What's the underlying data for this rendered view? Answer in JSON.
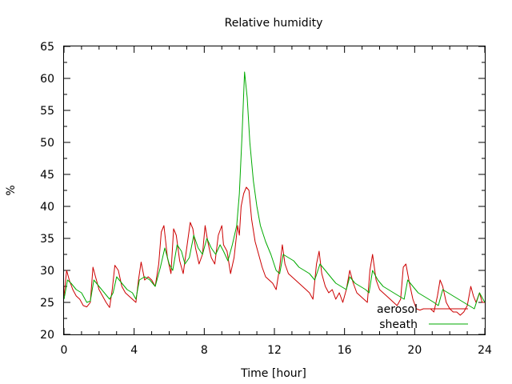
{
  "chart_data": {
    "type": "line",
    "title": "Relative humidity",
    "xlabel": "Time [hour]",
    "ylabel": "%",
    "xlim": [
      0,
      24
    ],
    "ylim": [
      20,
      65
    ],
    "xticks": [
      0,
      4,
      8,
      12,
      16,
      20,
      24
    ],
    "yticks": [
      20,
      25,
      30,
      35,
      40,
      45,
      50,
      55,
      60,
      65
    ],
    "grid": false,
    "legend_position": "bottom-right",
    "series": [
      {
        "name": "aerosol",
        "color": "#cc0000",
        "x": [
          0.0,
          0.15,
          0.3,
          0.5,
          0.7,
          0.9,
          1.1,
          1.3,
          1.5,
          1.65,
          1.8,
          2.0,
          2.2,
          2.4,
          2.6,
          2.75,
          2.9,
          3.1,
          3.3,
          3.5,
          3.7,
          3.9,
          4.1,
          4.25,
          4.4,
          4.6,
          4.8,
          5.0,
          5.2,
          5.4,
          5.55,
          5.7,
          5.9,
          6.1,
          6.25,
          6.4,
          6.6,
          6.8,
          7.0,
          7.2,
          7.35,
          7.5,
          7.7,
          7.9,
          8.05,
          8.2,
          8.4,
          8.6,
          8.8,
          9.0,
          9.1,
          9.3,
          9.5,
          9.7,
          9.9,
          10.0,
          10.1,
          10.25,
          10.4,
          10.55,
          10.7,
          10.9,
          11.1,
          11.3,
          11.5,
          11.7,
          11.9,
          12.1,
          12.3,
          12.45,
          12.6,
          12.8,
          13.0,
          13.2,
          13.4,
          13.6,
          13.8,
          14.0,
          14.2,
          14.4,
          14.55,
          14.7,
          14.9,
          15.1,
          15.3,
          15.5,
          15.7,
          15.9,
          16.1,
          16.3,
          16.5,
          16.7,
          16.9,
          17.1,
          17.3,
          17.45,
          17.6,
          17.8,
          18.0,
          18.2,
          18.4,
          18.6,
          18.8,
          19.0,
          19.2,
          19.35,
          19.5,
          19.7,
          19.9,
          20.1,
          20.3,
          20.5,
          20.7,
          20.9,
          21.1,
          21.3,
          21.45,
          21.6,
          21.8,
          22.0,
          22.2,
          22.4,
          22.6,
          22.8,
          23.0,
          23.2,
          23.35,
          23.5,
          23.7,
          23.85,
          24.0
        ],
        "y": [
          26.0,
          30.0,
          28.5,
          27.0,
          26.0,
          25.5,
          24.5,
          24.3,
          25.0,
          30.5,
          29.0,
          27.0,
          26.0,
          25.0,
          24.2,
          27.0,
          30.8,
          30.0,
          27.5,
          26.5,
          26.0,
          25.5,
          25.0,
          28.5,
          31.3,
          28.5,
          29.0,
          28.5,
          27.5,
          31.0,
          36.0,
          37.0,
          32.0,
          29.5,
          36.5,
          35.5,
          31.5,
          29.5,
          33.5,
          37.5,
          36.5,
          33.5,
          31.0,
          32.5,
          37.0,
          34.5,
          32.0,
          31.0,
          35.5,
          37.0,
          34.0,
          33.0,
          29.5,
          32.0,
          37.0,
          35.5,
          40.0,
          42.0,
          43.0,
          42.5,
          38.0,
          34.5,
          32.5,
          30.5,
          29.0,
          28.5,
          28.0,
          27.0,
          30.5,
          34.0,
          31.0,
          29.5,
          29.0,
          28.5,
          28.0,
          27.5,
          27.0,
          26.5,
          25.5,
          31.0,
          33.0,
          29.5,
          27.5,
          26.5,
          27.0,
          25.5,
          26.5,
          25.0,
          27.0,
          30.0,
          28.0,
          26.5,
          26.0,
          25.5,
          25.0,
          30.0,
          32.5,
          28.5,
          27.0,
          26.5,
          26.0,
          25.5,
          25.0,
          24.5,
          25.5,
          30.5,
          31.0,
          28.0,
          25.5,
          24.0,
          23.8,
          24.0,
          24.0,
          24.0,
          23.5,
          26.0,
          28.5,
          27.5,
          25.0,
          24.0,
          23.5,
          23.5,
          23.0,
          23.5,
          24.5,
          27.5,
          26.0,
          25.0,
          26.5,
          25.0,
          25.0
        ]
      },
      {
        "name": "sheath",
        "color": "#00aa00",
        "x": [
          0.0,
          0.2,
          0.4,
          0.7,
          1.0,
          1.3,
          1.5,
          1.7,
          2.0,
          2.3,
          2.6,
          2.8,
          3.0,
          3.3,
          3.6,
          3.9,
          4.1,
          4.3,
          4.6,
          4.9,
          5.2,
          5.5,
          5.75,
          6.0,
          6.2,
          6.45,
          6.7,
          6.9,
          7.15,
          7.4,
          7.65,
          7.9,
          8.15,
          8.4,
          8.65,
          8.9,
          9.1,
          9.35,
          9.6,
          9.85,
          10.0,
          10.15,
          10.3,
          10.45,
          10.6,
          10.8,
          11.0,
          11.2,
          11.5,
          11.8,
          12.1,
          12.3,
          12.5,
          12.8,
          13.1,
          13.4,
          13.7,
          14.0,
          14.3,
          14.6,
          14.9,
          15.2,
          15.5,
          15.8,
          16.1,
          16.3,
          16.6,
          16.9,
          17.2,
          17.4,
          17.6,
          17.9,
          18.2,
          18.5,
          18.8,
          19.1,
          19.4,
          19.6,
          19.9,
          20.2,
          20.5,
          20.8,
          21.1,
          21.35,
          21.6,
          21.9,
          22.2,
          22.5,
          22.8,
          23.1,
          23.4,
          23.7,
          24.0
        ],
        "y": [
          25.5,
          28.5,
          28.0,
          27.0,
          26.5,
          25.0,
          25.2,
          28.5,
          27.5,
          26.5,
          25.5,
          26.5,
          29.0,
          28.0,
          27.0,
          26.5,
          25.5,
          28.5,
          29.0,
          28.5,
          27.5,
          30.5,
          33.5,
          31.0,
          30.0,
          34.0,
          33.0,
          31.0,
          32.0,
          35.5,
          33.5,
          32.5,
          35.0,
          33.5,
          32.5,
          34.0,
          33.0,
          31.5,
          34.0,
          37.0,
          42.0,
          51.0,
          61.0,
          57.0,
          50.0,
          44.0,
          40.0,
          37.0,
          34.5,
          32.5,
          30.0,
          29.5,
          32.5,
          32.0,
          31.5,
          30.5,
          30.0,
          29.5,
          28.5,
          31.0,
          30.0,
          29.0,
          28.0,
          27.5,
          27.0,
          29.0,
          28.0,
          27.5,
          27.0,
          26.5,
          30.0,
          28.5,
          27.5,
          27.0,
          26.5,
          26.0,
          25.5,
          28.5,
          27.5,
          26.5,
          26.0,
          25.5,
          25.0,
          24.5,
          27.0,
          26.5,
          26.0,
          25.5,
          25.0,
          24.5,
          24.0,
          26.5,
          25.0
        ]
      }
    ]
  }
}
